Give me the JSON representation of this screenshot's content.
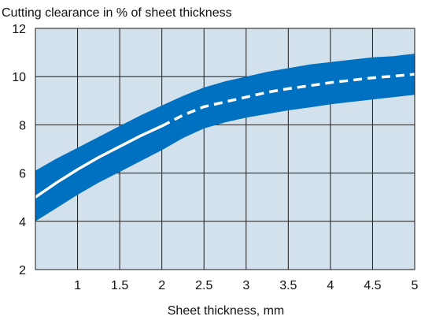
{
  "chart_data": {
    "type": "area",
    "title": "Cutting clearance in % of sheet thickness",
    "xlabel": "Sheet thickness, mm",
    "ylabel": "",
    "xlim": [
      0.5,
      5
    ],
    "ylim": [
      2,
      12
    ],
    "x_ticks": [
      1,
      1.5,
      2,
      2.5,
      3,
      3.5,
      4,
      4.5,
      5
    ],
    "x_tick_labels": [
      "1",
      "1.5",
      "2",
      "2.5",
      "3",
      "3.5",
      "4",
      "4.5",
      "5"
    ],
    "y_ticks": [
      2,
      4,
      6,
      8,
      10,
      12
    ],
    "y_tick_labels": [
      "2",
      "4",
      "6",
      "8",
      "10",
      "12"
    ],
    "grid": true,
    "colors": {
      "plot_background": "#d3e1ec",
      "band": "#0070c0",
      "line": "#ffffff",
      "grid": "#1a1a1a"
    },
    "band": {
      "x": [
        0.5,
        0.75,
        1.0,
        1.25,
        1.5,
        1.75,
        2.0,
        2.25,
        2.5,
        2.75,
        3.0,
        3.25,
        3.5,
        3.75,
        4.0,
        4.25,
        4.5,
        4.75,
        5.0
      ],
      "upper": [
        6.1,
        6.6,
        7.05,
        7.5,
        7.95,
        8.4,
        8.8,
        9.2,
        9.55,
        9.8,
        10.0,
        10.2,
        10.35,
        10.5,
        10.6,
        10.7,
        10.8,
        10.85,
        10.95
      ],
      "lower": [
        4.0,
        4.55,
        5.1,
        5.6,
        6.05,
        6.5,
        6.95,
        7.45,
        7.85,
        8.1,
        8.3,
        8.45,
        8.6,
        8.72,
        8.85,
        8.95,
        9.05,
        9.15,
        9.25
      ]
    },
    "series": [
      {
        "style": "solid",
        "x": [
          0.5,
          0.75,
          1.0,
          1.25,
          1.5,
          1.75,
          2.0
        ],
        "y": [
          5.0,
          5.6,
          6.15,
          6.65,
          7.1,
          7.55,
          7.95
        ]
      },
      {
        "style": "dashed",
        "x": [
          2.0,
          2.25,
          2.5,
          2.75,
          3.0,
          3.25,
          3.5,
          3.75,
          4.0,
          4.25,
          4.5,
          4.75,
          5.0
        ],
        "y": [
          7.95,
          8.4,
          8.75,
          8.95,
          9.15,
          9.35,
          9.5,
          9.62,
          9.75,
          9.85,
          9.95,
          10.02,
          10.1
        ]
      }
    ]
  }
}
